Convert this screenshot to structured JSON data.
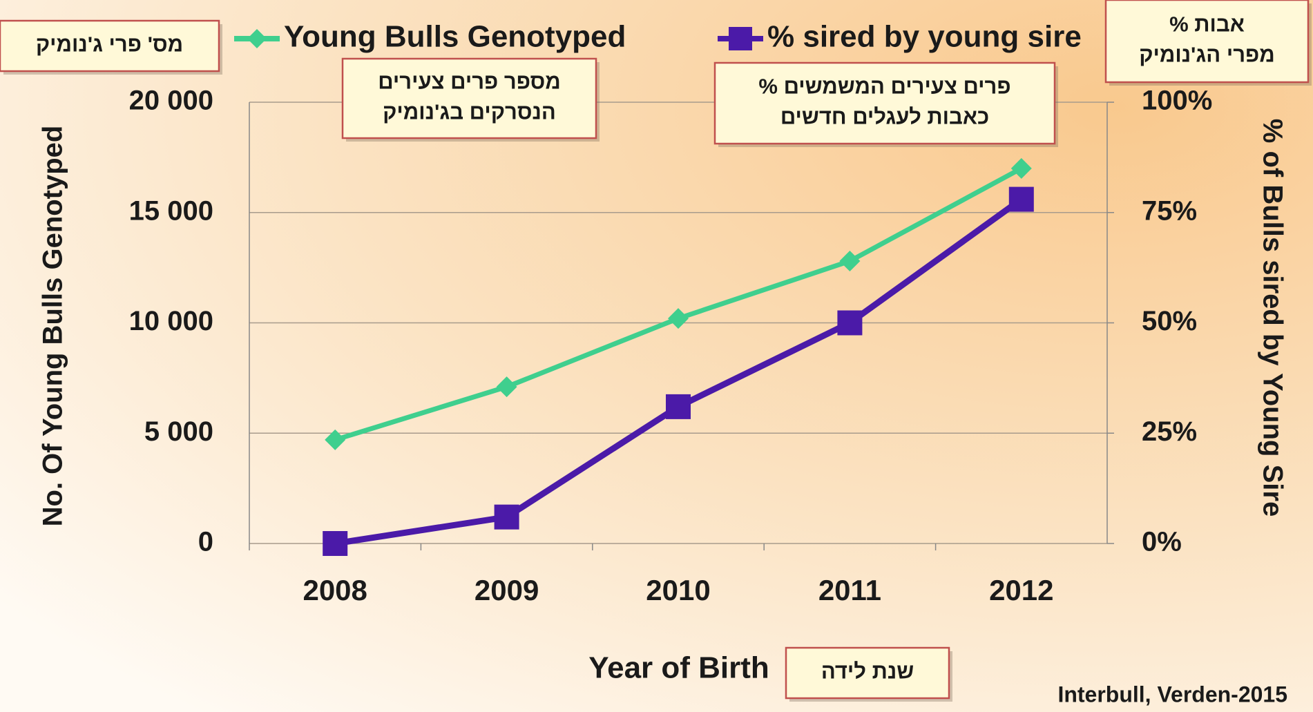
{
  "chart_data": {
    "type": "line",
    "categories": [
      "2008",
      "2009",
      "2010",
      "2011",
      "2012"
    ],
    "series": [
      {
        "name": "Young Bulls Genotyped",
        "color": "#3fcf8e",
        "marker": "diamond",
        "values": [
          4700,
          7100,
          10200,
          12800,
          17000
        ]
      },
      {
        "name": "% sired by young sire",
        "color": "#4b1aa8",
        "marker": "square",
        "axis": "y2",
        "values": [
          0,
          6,
          31,
          50,
          78
        ]
      }
    ],
    "ylim": [
      0,
      20000
    ],
    "yticks": [
      0,
      {
        "value": 5000,
        "label": "5 000"
      },
      {
        "value": 10000,
        "label": "10 000"
      },
      {
        "value": 15000,
        "label": "15 000"
      },
      {
        "value": 20000,
        "label": "20 000"
      }
    ],
    "y2lim": [
      0,
      100
    ],
    "y2ticks": [
      {
        "value": 0,
        "label": "0%"
      },
      {
        "value": 25,
        "label": "25%"
      },
      {
        "value": 50,
        "label": "50%"
      },
      {
        "value": 75,
        "label": "75%"
      },
      {
        "value": 100,
        "label": "100%"
      }
    ],
    "grid": true,
    "ylabel": "No. Of Young Bulls Genotyped",
    "y2label": "% of Bulls sired by Young Sire",
    "xlabel": "Year of Birth",
    "source": "Interbull, Verden-2015",
    "annotations": [
      {
        "lines": [
          "מס' פרי ג'נומיק"
        ]
      },
      {
        "lines": [
          "מספר פרים צעירים",
          "הנסרקים בג'נומיק"
        ]
      },
      {
        "lines": [
          "פרים צעירים המשמשים %",
          "כאבות לעגלים חדשים"
        ]
      },
      {
        "lines": [
          "אבות %",
          "מפרי הג'נומיק"
        ]
      },
      {
        "lines": [
          "שנת לידה"
        ]
      }
    ]
  }
}
